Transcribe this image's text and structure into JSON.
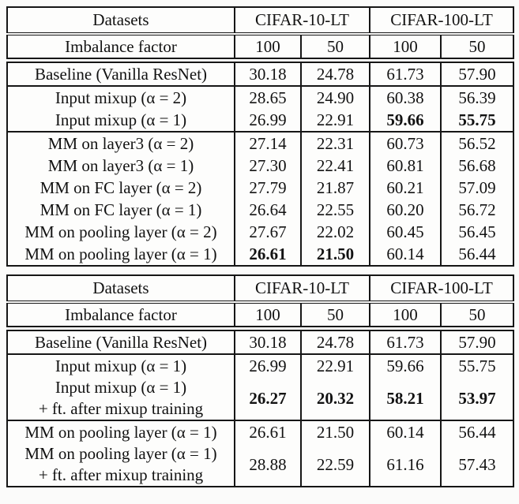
{
  "table1": {
    "header_row1": {
      "col0": "Datasets",
      "group1": "CIFAR-10-LT",
      "group2": "CIFAR-100-LT"
    },
    "header_row2": {
      "col0": "Imbalance factor",
      "c1": "100",
      "c2": "50",
      "c3": "100",
      "c4": "50"
    },
    "rows": [
      {
        "label": "Baseline (Vanilla ResNet)",
        "c1": "30.18",
        "c2": "24.78",
        "c3": "61.73",
        "c4": "57.90",
        "bold": []
      },
      {
        "label": "Input mixup (α = 2)",
        "c1": "28.65",
        "c2": "24.90",
        "c3": "60.38",
        "c4": "56.39",
        "bold": []
      },
      {
        "label": "Input mixup (α = 1)",
        "c1": "26.99",
        "c2": "22.91",
        "c3": "59.66",
        "c4": "55.75",
        "bold": [
          "c3",
          "c4"
        ]
      },
      {
        "label": "MM on layer3 (α = 2)",
        "c1": "27.14",
        "c2": "22.31",
        "c3": "60.73",
        "c4": "56.52",
        "bold": []
      },
      {
        "label": "MM on layer3 (α = 1)",
        "c1": "27.30",
        "c2": "22.41",
        "c3": "60.81",
        "c4": "56.68",
        "bold": []
      },
      {
        "label": "MM on FC layer (α = 2)",
        "c1": "27.79",
        "c2": "21.87",
        "c3": "60.21",
        "c4": "57.09",
        "bold": []
      },
      {
        "label": "MM on FC layer (α = 1)",
        "c1": "26.64",
        "c2": "22.55",
        "c3": "60.20",
        "c4": "56.72",
        "bold": []
      },
      {
        "label": "MM on pooling layer (α = 2)",
        "c1": "27.67",
        "c2": "22.02",
        "c3": "60.45",
        "c4": "56.45",
        "bold": []
      },
      {
        "label": "MM on pooling layer (α = 1)",
        "c1": "26.61",
        "c2": "21.50",
        "c3": "60.14",
        "c4": "56.44",
        "bold": [
          "c1",
          "c2"
        ]
      }
    ]
  },
  "table2": {
    "header_row1": {
      "col0": "Datasets",
      "group1": "CIFAR-10-LT",
      "group2": "CIFAR-100-LT"
    },
    "header_row2": {
      "col0": "Imbalance factor",
      "c1": "100",
      "c2": "50",
      "c3": "100",
      "c4": "50"
    },
    "rows": [
      {
        "label": "Baseline (Vanilla ResNet)",
        "label2": "",
        "c1": "30.18",
        "c2": "24.78",
        "c3": "61.73",
        "c4": "57.90",
        "bold": []
      },
      {
        "label": "Input mixup (α = 1)",
        "label2": "",
        "c1": "26.99",
        "c2": "22.91",
        "c3": "59.66",
        "c4": "55.75",
        "bold": []
      },
      {
        "label": "Input mixup (α = 1)",
        "label2": "+ ft. after mixup training",
        "c1": "26.27",
        "c2": "20.32",
        "c3": "58.21",
        "c4": "53.97",
        "bold": [
          "c1",
          "c2",
          "c3",
          "c4"
        ]
      },
      {
        "label": "MM on pooling layer (α = 1)",
        "label2": "",
        "c1": "26.61",
        "c2": "21.50",
        "c3": "60.14",
        "c4": "56.44",
        "bold": []
      },
      {
        "label": "MM on pooling layer (α = 1)",
        "label2": "+ ft. after mixup training",
        "c1": "28.88",
        "c2": "22.59",
        "c3": "61.16",
        "c4": "57.43",
        "bold": []
      }
    ]
  }
}
